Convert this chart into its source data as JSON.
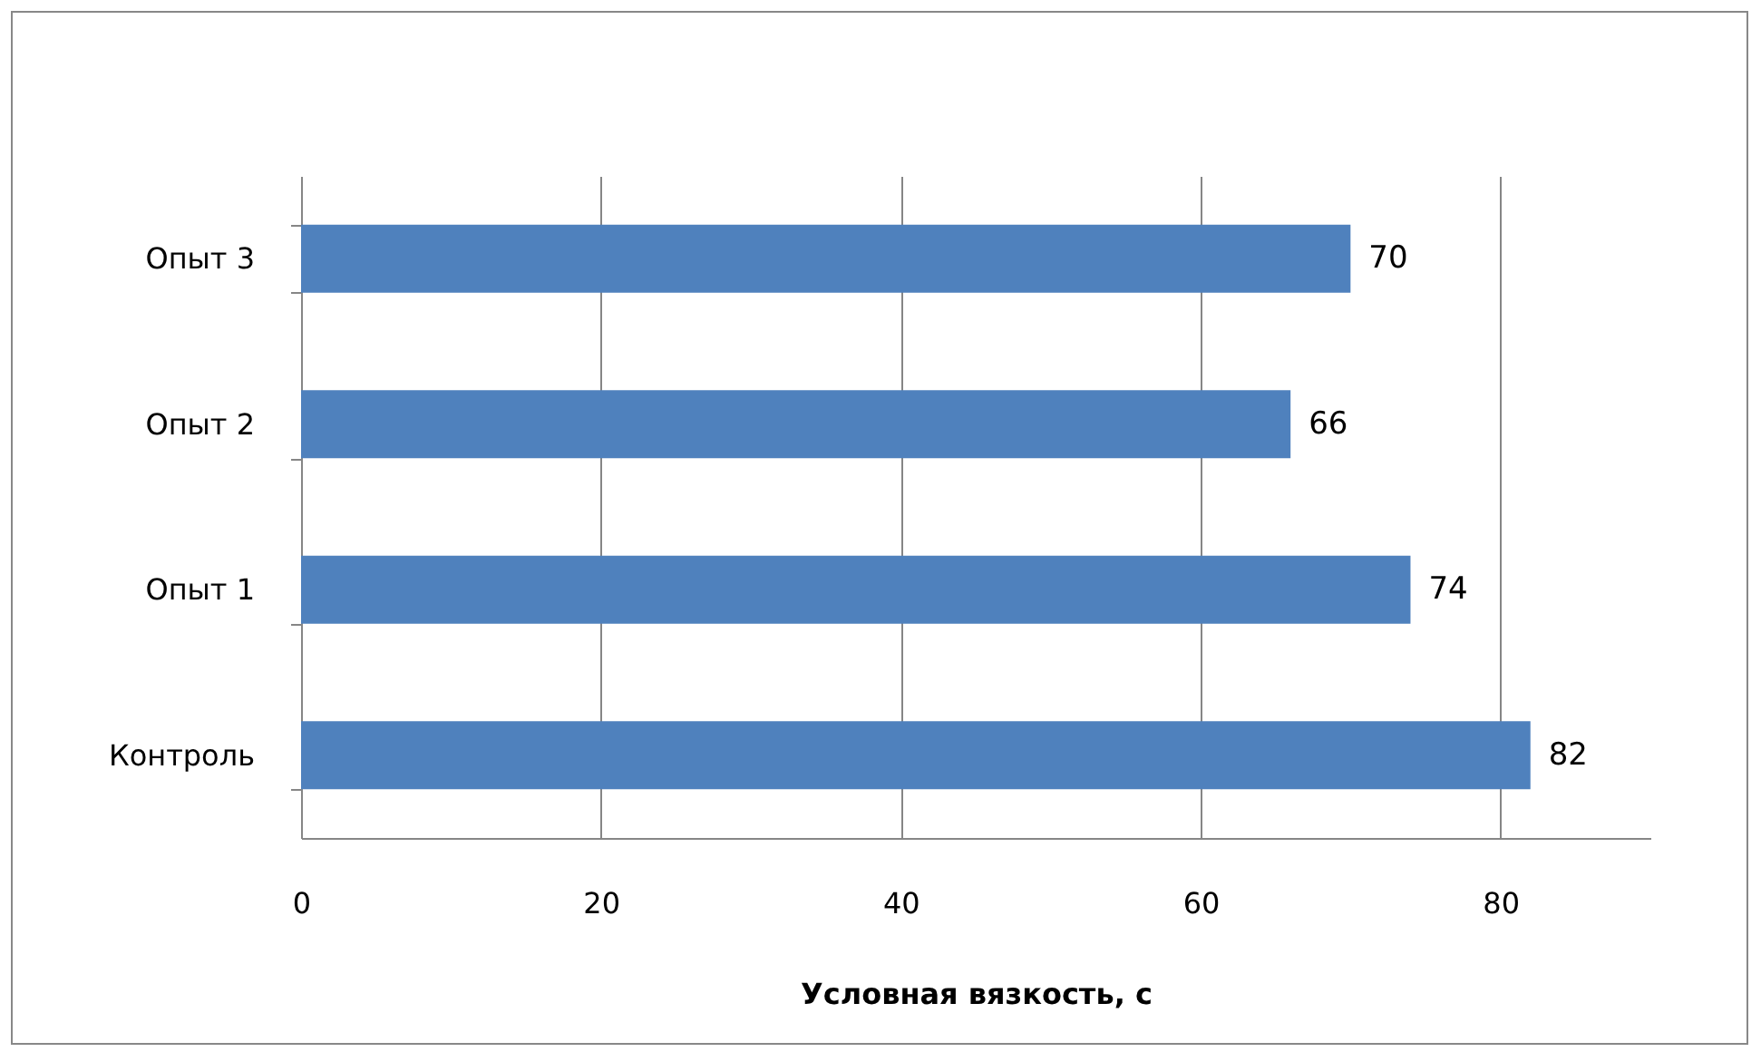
{
  "chart_data": {
    "type": "bar",
    "orientation": "horizontal",
    "xlabel": "Условная вязкость,  с",
    "categories": [
      "Опыт 3",
      "Опыт 2",
      "Опыт 1",
      "Контроль"
    ],
    "values": [
      70,
      66,
      74,
      82
    ],
    "color": "#4f81bd",
    "xlim": [
      0,
      90
    ],
    "xticks": [
      0,
      20,
      40,
      60,
      80
    ],
    "grid": "x",
    "data_labels": true
  }
}
